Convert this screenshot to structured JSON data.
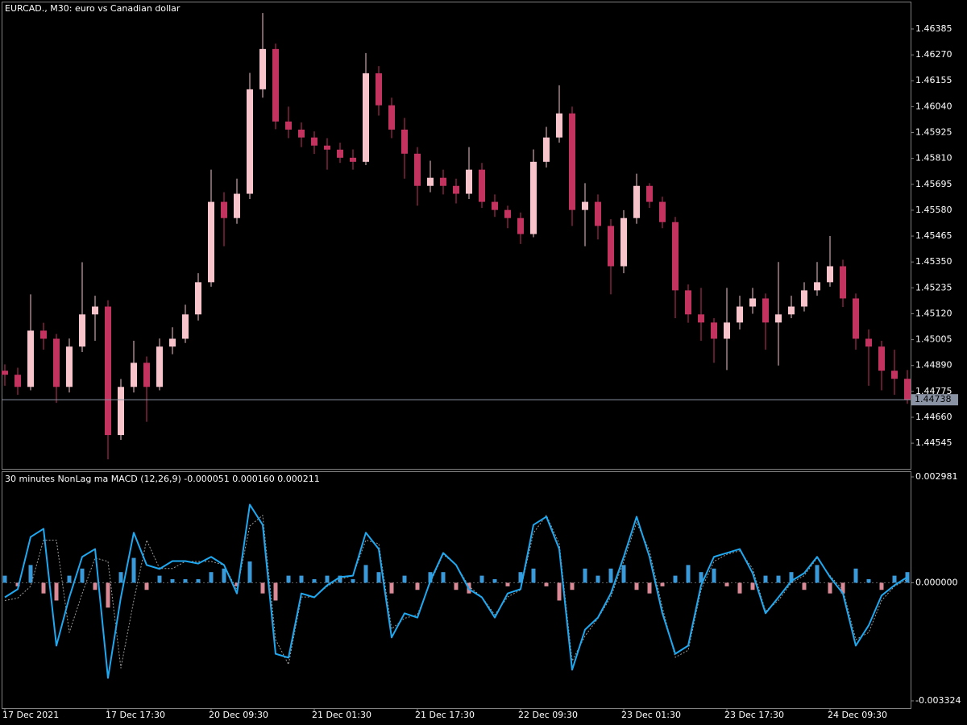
{
  "chart_data": [
    {
      "type": "candlestick",
      "title": "EURCAD., M30:  euro vs Canadian dollar",
      "up_color": "#f7c4cc",
      "down_color": "#c2335f",
      "wick_color": "#ffffff",
      "categories": [
        "17 Dec 2021",
        null,
        null,
        null,
        null,
        null,
        null,
        null,
        "17 Dec 17:30",
        null,
        null,
        null,
        null,
        null,
        null,
        null,
        "20 Dec 09:30",
        null,
        null,
        null,
        null,
        null,
        null,
        null,
        "21 Dec 01:30",
        null,
        null,
        null,
        null,
        null,
        null,
        null,
        "21 Dec 17:30",
        null,
        null,
        null,
        null,
        null,
        null,
        null,
        "22 Dec 09:30",
        null,
        null,
        null,
        null,
        null,
        null,
        null,
        "23 Dec 01:30",
        null,
        null,
        null,
        null,
        null,
        null,
        null,
        "23 Dec 17:30",
        null,
        null,
        null,
        null,
        null,
        null,
        null,
        "24 Dec 09:30",
        null,
        null,
        null,
        null,
        null,
        null
      ],
      "open": [
        1.44867,
        1.44849,
        1.44795,
        1.45045,
        1.45009,
        1.44795,
        1.44974,
        1.45117,
        1.45152,
        1.44581,
        1.44795,
        1.44902,
        1.44795,
        1.44974,
        1.45009,
        1.45117,
        1.4526,
        1.45617,
        1.45545,
        1.45653,
        1.46117,
        1.46296,
        1.45974,
        1.45938,
        1.45903,
        1.45867,
        1.45849,
        1.45813,
        1.45795,
        1.46188,
        1.46046,
        1.45938,
        1.45831,
        1.45688,
        1.45724,
        1.45688,
        1.45653,
        1.4576,
        1.45617,
        1.45581,
        1.45545,
        1.45474,
        1.45795,
        1.45903,
        1.4601,
        1.45581,
        1.45617,
        1.4551,
        1.45331,
        1.45545,
        1.45688,
        1.45617,
        1.45527,
        1.45224,
        1.45117,
        1.45081,
        1.45009,
        1.45081,
        1.45152,
        1.45188,
        1.45081,
        1.45117,
        1.45152,
        1.45224,
        1.4526,
        1.45331,
        1.45188,
        1.45009,
        1.44974,
        1.44867,
        1.44831
      ],
      "high": [
        1.44895,
        1.4488,
        1.45206,
        1.4508,
        1.4503,
        1.4501,
        1.45349,
        1.452,
        1.4518,
        1.4483,
        1.45,
        1.4493,
        1.4501,
        1.4506,
        1.4516,
        1.453,
        1.4576,
        1.4566,
        1.4572,
        1.4619,
        1.46456,
        1.4632,
        1.4604,
        1.4597,
        1.4593,
        1.459,
        1.4588,
        1.4585,
        1.46278,
        1.4622,
        1.4608,
        1.4599,
        1.4586,
        1.458,
        1.4576,
        1.4572,
        1.4586,
        1.4579,
        1.4565,
        1.456,
        1.4557,
        1.4585,
        1.4595,
        1.46135,
        1.4604,
        1.457,
        1.4565,
        1.4554,
        1.4558,
        1.45742,
        1.457,
        1.4564,
        1.4555,
        1.4525,
        1.45235,
        1.451,
        1.45235,
        1.452,
        1.45235,
        1.4521,
        1.4535,
        1.452,
        1.4526,
        1.4535,
        1.45465,
        1.4536,
        1.4521,
        1.4505,
        1.45,
        1.4496,
        1.4487
      ],
      "low": [
        1.448,
        1.4476,
        1.4478,
        1.4496,
        1.44724,
        1.4477,
        1.4495,
        1.45,
        1.44473,
        1.4456,
        1.4477,
        1.4464,
        1.4478,
        1.4494,
        1.4499,
        1.4509,
        1.4524,
        1.4542,
        1.4552,
        1.4563,
        1.4608,
        1.4594,
        1.459,
        1.4586,
        1.4583,
        1.4576,
        1.4579,
        1.4576,
        1.4578,
        1.46,
        1.459,
        1.4572,
        1.456,
        1.4566,
        1.4565,
        1.4561,
        1.4563,
        1.4559,
        1.4555,
        1.455,
        1.4543,
        1.4546,
        1.4577,
        1.4588,
        1.4551,
        1.4542,
        1.4545,
        1.45206,
        1.453,
        1.4552,
        1.4559,
        1.455,
        1.451,
        1.4508,
        1.45,
        1.44902,
        1.4487,
        1.4505,
        1.4512,
        1.4496,
        1.4489,
        1.451,
        1.4513,
        1.452,
        1.4524,
        1.4515,
        1.4496,
        1.448,
        1.4478,
        1.4476,
        1.4472
      ],
      "close": [
        1.44849,
        1.44795,
        1.45045,
        1.45009,
        1.44795,
        1.44974,
        1.45117,
        1.45152,
        1.44581,
        1.44795,
        1.44902,
        1.44795,
        1.44974,
        1.45009,
        1.45117,
        1.4526,
        1.45617,
        1.45545,
        1.45653,
        1.46117,
        1.46296,
        1.45974,
        1.45938,
        1.45903,
        1.45867,
        1.45849,
        1.45813,
        1.45795,
        1.46188,
        1.46046,
        1.45938,
        1.45831,
        1.45688,
        1.45724,
        1.45688,
        1.45653,
        1.4576,
        1.45617,
        1.45581,
        1.45545,
        1.45474,
        1.45795,
        1.45903,
        1.4601,
        1.45581,
        1.45617,
        1.4551,
        1.45331,
        1.45545,
        1.45688,
        1.45617,
        1.45527,
        1.45224,
        1.45117,
        1.45081,
        1.45009,
        1.45081,
        1.45152,
        1.45188,
        1.45081,
        1.45117,
        1.45152,
        1.45224,
        1.4526,
        1.45331,
        1.45188,
        1.45009,
        1.44974,
        1.44867,
        1.44831,
        1.44738
      ],
      "last_price": 1.44738,
      "ylim": [
        1.44431,
        1.46503
      ],
      "yticks": [
        1.46385,
        {
          "value": 1.4627,
          "label": "1.46270"
        },
        1.46155,
        {
          "value": 1.4604,
          "label": "1.46040"
        },
        1.45925,
        {
          "value": 1.4581,
          "label": "1.45810"
        },
        1.45695,
        {
          "value": 1.4558,
          "label": "1.45580"
        },
        1.45465,
        {
          "value": 1.4535,
          "label": "1.45350"
        },
        1.45235,
        {
          "value": 1.4512,
          "label": "1.45120"
        },
        1.45005,
        {
          "value": 1.4489,
          "label": "1.44890"
        },
        1.44775,
        {
          "value": 1.4466,
          "label": "1.44660"
        },
        1.44545
      ]
    },
    {
      "type": "macd",
      "title": "30 minutes NonLag ma MACD (12,26,9) -0.000051 0.000160 0.000211",
      "ylim": [
        -0.003551,
        0.003117
      ],
      "yticks": [
        0.002981,
        {
          "value": 0,
          "label": "0.000000"
        },
        -0.003324
      ],
      "histogram": {
        "pos_color": "#3a9ad9",
        "neg_color": "#d98a96",
        "values": [
          0.0002,
          -0.0001,
          0.0005,
          -0.0003,
          -0.0005,
          0.0002,
          0.0004,
          -0.0002,
          -0.0007,
          0.0003,
          0.0007,
          -0.0002,
          0.0002,
          0.0001,
          0.0001,
          0.0001,
          0.0003,
          0.0004,
          -0.0001,
          0.0006,
          -0.0003,
          -0.0005,
          0.0002,
          0.0002,
          0.0001,
          0.0002,
          0.0002,
          0.0001,
          0.0005,
          0.0003,
          -0.0003,
          0.0002,
          -0.0002,
          0.0003,
          0.0003,
          -0.0002,
          -0.0003,
          0.0002,
          0.0001,
          -0.0001,
          0.0003,
          0.0004,
          -0.0001,
          -0.0005,
          -0.0002,
          0.0004,
          0.0002,
          0.0004,
          0.0005,
          -0.0002,
          -0.0003,
          -0.0001,
          0.0002,
          0.0005,
          0.0003,
          0.0004,
          -0.0001,
          -0.0003,
          -0.0002,
          0.0002,
          0.0002,
          0.0003,
          -0.0002,
          0.0005,
          -0.0003,
          -0.0003,
          0.0004,
          0.0001,
          -0.0002,
          0.0002,
          0.0003
        ]
      },
      "series": [
        {
          "color": "#9a9a9a",
          "dash": true,
          "values": [
            -0.0005,
            -0.00043,
            -0.0001,
            0.0012,
            0.0012,
            -0.0014,
            -0.0003,
            0.0007,
            0.0006,
            -0.0024,
            -0.0005,
            0.0012,
            0.0004,
            0.0004,
            0.0006,
            0.0006,
            0.0006,
            0.0005,
            -0.0002,
            0.0016,
            0.0019,
            -0.0016,
            -0.0023,
            -0.0004,
            -0.0004,
            -0.0001,
            0.0001,
            0.0002,
            0.0012,
            0.0011,
            -0.0013,
            -0.001,
            -0.0009,
            0.0,
            0.0008,
            0.0005,
            -0.0001,
            -0.0004,
            -0.0009,
            -0.0004,
            -0.0002,
            0.0014,
            0.0019,
            0.0011,
            -0.0022,
            -0.0015,
            -0.001,
            -0.0004,
            0.0006,
            0.0017,
            0.0009,
            -0.0007,
            -0.0021,
            -0.0019,
            -0.0002,
            0.0006,
            0.0008,
            0.0009,
            0.0004,
            -0.0008,
            -0.0005,
            0.0,
            0.0002,
            0.0007,
            0.0002,
            -0.0002,
            -0.0016,
            -0.0014,
            -0.0005,
            -0.0001,
            0.0001
          ]
        },
        {
          "color": "#1fa8f0",
          "dash": false,
          "values": [
            -0.00041,
            -0.00018,
            0.00129,
            0.00152,
            -0.00177,
            -0.00041,
            0.00073,
            0.00095,
            -0.00268,
            -0.00041,
            0.00141,
            0.0005,
            0.00039,
            0.00061,
            0.00061,
            0.00054,
            0.00073,
            0.0005,
            -0.0003,
            0.0022,
            0.00163,
            -0.002,
            -0.00211,
            -0.0003,
            -0.00041,
            -7e-05,
            0.00016,
            0.0002,
            0.00141,
            0.00095,
            -0.00154,
            -0.00086,
            -0.00098,
            5e-05,
            0.00084,
            0.0005,
            -0.00018,
            -0.00041,
            -0.00098,
            -0.0003,
            -0.00018,
            0.00163,
            0.00186,
            0.00095,
            -0.00245,
            -0.00132,
            -0.00098,
            -0.0003,
            0.00073,
            0.00186,
            0.00073,
            -0.00086,
            -0.002,
            -0.00177,
            -7e-05,
            0.00073,
            0.00084,
            0.00095,
            0.00027,
            -0.00086,
            -0.00041,
            5e-05,
            0.00027,
            0.00073,
            0.00016,
            -0.0003,
            -0.00177,
            -0.0012,
            -0.00036,
            -7e-05,
            0.00016
          ]
        }
      ]
    }
  ]
}
